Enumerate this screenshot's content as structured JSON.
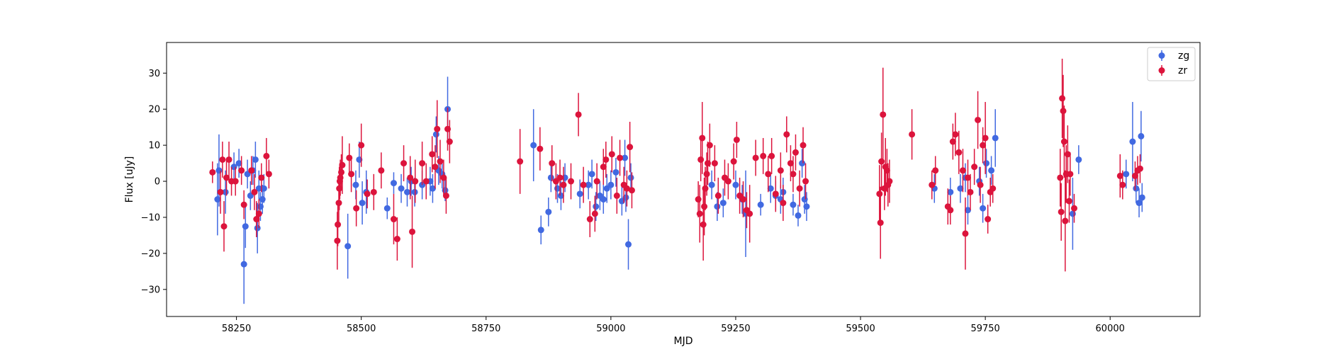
{
  "chart_data": {
    "type": "scatter",
    "title": "",
    "xlabel": "MJD",
    "ylabel": "Flux [uJy]",
    "xlim": [
      58110,
      60180
    ],
    "ylim": [
      -37.5,
      38.5
    ],
    "xticks": [
      58250,
      58500,
      58750,
      59000,
      59250,
      59500,
      59750,
      60000
    ],
    "yticks": [
      -30,
      -20,
      -10,
      0,
      10,
      20,
      30
    ],
    "grid": false,
    "legend_position": "top-right",
    "error_bars": true,
    "series": [
      {
        "name": "zg",
        "color": "#4169e1",
        "points": [
          [
            58212,
            -5,
            10
          ],
          [
            58215,
            3,
            10
          ],
          [
            58228,
            -3,
            6
          ],
          [
            58245,
            4,
            4
          ],
          [
            58255,
            5,
            4
          ],
          [
            58265,
            -23,
            11
          ],
          [
            58268,
            -12.5,
            6
          ],
          [
            58272,
            2,
            4
          ],
          [
            58278,
            -4,
            4
          ],
          [
            58283,
            3,
            4
          ],
          [
            58288,
            6,
            5
          ],
          [
            58292,
            -13,
            7
          ],
          [
            58295,
            -2,
            5
          ],
          [
            58298,
            -7,
            4
          ],
          [
            58302,
            -5,
            4
          ],
          [
            58305,
            -2,
            4
          ],
          [
            58473,
            -18,
            9
          ],
          [
            58489,
            -1,
            4
          ],
          [
            58496,
            6,
            5
          ],
          [
            58502,
            -6,
            6
          ],
          [
            58510,
            -3,
            6
          ],
          [
            58552,
            -7.5,
            3
          ],
          [
            58565,
            -0.5,
            3
          ],
          [
            58580,
            -2,
            4
          ],
          [
            58592,
            -3,
            4
          ],
          [
            58600,
            0,
            4
          ],
          [
            58607,
            -3,
            4
          ],
          [
            58622,
            -1,
            4
          ],
          [
            58638,
            0,
            4
          ],
          [
            58643,
            -2,
            4
          ],
          [
            58650,
            13,
            5
          ],
          [
            58655,
            3,
            4
          ],
          [
            58662,
            2,
            4
          ],
          [
            58668,
            -2.5,
            3
          ],
          [
            58673,
            20,
            9
          ],
          [
            58845,
            10,
            10
          ],
          [
            58860,
            -13.5,
            4
          ],
          [
            58875,
            -8.5,
            4
          ],
          [
            58880,
            1,
            4
          ],
          [
            58893,
            -2,
            4
          ],
          [
            58900,
            -4,
            4
          ],
          [
            58908,
            1,
            4
          ],
          [
            58938,
            -3.5,
            4
          ],
          [
            58955,
            -1,
            4
          ],
          [
            58962,
            2,
            4
          ],
          [
            58970,
            -7,
            4
          ],
          [
            58978,
            -4,
            4
          ],
          [
            58985,
            -5,
            4
          ],
          [
            58992,
            -2,
            4
          ],
          [
            59000,
            -1,
            4
          ],
          [
            59010,
            2.5,
            4
          ],
          [
            59022,
            -5.5,
            4
          ],
          [
            59028,
            6.5,
            5
          ],
          [
            59030,
            -4.5,
            4
          ],
          [
            59035,
            -17.5,
            7
          ],
          [
            59040,
            1,
            4
          ],
          [
            59202,
            -1,
            4
          ],
          [
            59213,
            -7,
            4
          ],
          [
            59225,
            -6,
            4
          ],
          [
            59250,
            -1,
            4
          ],
          [
            59263,
            -5,
            4
          ],
          [
            59270,
            -9,
            12
          ],
          [
            59300,
            -6.5,
            3
          ],
          [
            59320,
            -2,
            4
          ],
          [
            59330,
            -4,
            4
          ],
          [
            59340,
            -5,
            4
          ],
          [
            59345,
            -3,
            4
          ],
          [
            59365,
            -6.5,
            3
          ],
          [
            59375,
            -9.5,
            3
          ],
          [
            59383,
            5,
            4
          ],
          [
            59388,
            -5,
            4
          ],
          [
            59392,
            -7,
            4
          ],
          [
            59648,
            -2,
            4
          ],
          [
            59680,
            -3,
            4
          ],
          [
            59700,
            -2,
            4
          ],
          [
            59710,
            1,
            4
          ],
          [
            59715,
            -8,
            4
          ],
          [
            59738,
            0,
            4
          ],
          [
            59745,
            -7.5,
            4
          ],
          [
            59752,
            5,
            4
          ],
          [
            59762,
            3,
            4
          ],
          [
            59770,
            12,
            8
          ],
          [
            59925,
            -9,
            10
          ],
          [
            59937,
            6,
            4
          ],
          [
            60032,
            2,
            4
          ],
          [
            60045,
            11,
            11
          ],
          [
            60052,
            -2,
            4
          ],
          [
            60058,
            -6,
            4
          ],
          [
            60062,
            12.5,
            7
          ],
          [
            60064,
            -4.5,
            4
          ]
        ]
      },
      {
        "name": "zr",
        "color": "#dc143c",
        "points": [
          [
            58202,
            2.5,
            3
          ],
          [
            58218,
            -3,
            6
          ],
          [
            58222,
            6,
            5
          ],
          [
            58225,
            -12.5,
            7
          ],
          [
            58230,
            1,
            5
          ],
          [
            58235,
            6,
            5
          ],
          [
            58240,
            0,
            4
          ],
          [
            58248,
            0,
            4
          ],
          [
            58260,
            3,
            4
          ],
          [
            58265,
            -6.5,
            4
          ],
          [
            58280,
            3,
            4
          ],
          [
            58286,
            -3,
            5
          ],
          [
            58290,
            -10.5,
            5
          ],
          [
            58295,
            -9,
            4
          ],
          [
            58300,
            1,
            4
          ],
          [
            58310,
            7,
            5
          ],
          [
            58315,
            2,
            4
          ],
          [
            58452,
            -16.5,
            8
          ],
          [
            58453,
            -12,
            6
          ],
          [
            58455,
            -6,
            6
          ],
          [
            58456,
            -2,
            6
          ],
          [
            58457,
            0,
            5
          ],
          [
            58458,
            1,
            5
          ],
          [
            58460,
            2.5,
            5
          ],
          [
            58462,
            4.5,
            8
          ],
          [
            58476,
            6.5,
            4
          ],
          [
            58480,
            2,
            5
          ],
          [
            58490,
            -7.5,
            5
          ],
          [
            58500,
            10,
            6
          ],
          [
            58512,
            -3.5,
            4
          ],
          [
            58525,
            -3,
            5
          ],
          [
            58540,
            3,
            5
          ],
          [
            58565,
            -10.5,
            7
          ],
          [
            58572,
            -16,
            6
          ],
          [
            58585,
            5,
            5
          ],
          [
            58598,
            1,
            6
          ],
          [
            58602,
            -14,
            10
          ],
          [
            58608,
            0,
            6
          ],
          [
            58622,
            5,
            6
          ],
          [
            58630,
            0,
            5
          ],
          [
            58642,
            7.5,
            5
          ],
          [
            58648,
            4,
            6
          ],
          [
            58652,
            14.5,
            8
          ],
          [
            58658,
            5.5,
            6
          ],
          [
            58665,
            1,
            5
          ],
          [
            58670,
            -4,
            5
          ],
          [
            58673,
            14.5,
            6
          ],
          [
            58677,
            11,
            6
          ],
          [
            58818,
            5.5,
            9
          ],
          [
            58858,
            9,
            6
          ],
          [
            58882,
            5,
            5
          ],
          [
            58890,
            0,
            5
          ],
          [
            58898,
            1,
            5
          ],
          [
            58905,
            -1,
            5
          ],
          [
            58920,
            0,
            5
          ],
          [
            58935,
            18.5,
            6
          ],
          [
            58945,
            -1,
            5
          ],
          [
            58958,
            -10.5,
            5
          ],
          [
            58968,
            -9,
            5
          ],
          [
            58972,
            0,
            5
          ],
          [
            58985,
            4,
            5
          ],
          [
            58990,
            6,
            5
          ],
          [
            59002,
            7.5,
            5
          ],
          [
            59012,
            -4,
            5
          ],
          [
            59018,
            6.5,
            5
          ],
          [
            59026,
            -1,
            5
          ],
          [
            59032,
            -2,
            5
          ],
          [
            59038,
            9.5,
            7
          ],
          [
            59042,
            -2.5,
            5
          ],
          [
            59175,
            -5,
            5
          ],
          [
            59178,
            -9,
            8
          ],
          [
            59180,
            6,
            6
          ],
          [
            59183,
            12,
            10
          ],
          [
            59185,
            -12,
            10
          ],
          [
            59187,
            -7,
            8
          ],
          [
            59189,
            -2,
            6
          ],
          [
            59192,
            2,
            6
          ],
          [
            59194,
            5,
            6
          ],
          [
            59198,
            10,
            6
          ],
          [
            59208,
            5,
            5
          ],
          [
            59215,
            -4,
            5
          ],
          [
            59228,
            1,
            5
          ],
          [
            59235,
            0,
            5
          ],
          [
            59246,
            5.5,
            5
          ],
          [
            59252,
            11.5,
            5
          ],
          [
            59258,
            -4,
            5
          ],
          [
            59265,
            -5,
            5
          ],
          [
            59272,
            -8,
            5
          ],
          [
            59278,
            -9,
            8
          ],
          [
            59290,
            6.5,
            5
          ],
          [
            59305,
            7,
            5
          ],
          [
            59315,
            2,
            5
          ],
          [
            59322,
            7,
            5
          ],
          [
            59330,
            -3.5,
            5
          ],
          [
            59340,
            3,
            5
          ],
          [
            59345,
            -6,
            5
          ],
          [
            59352,
            13,
            5
          ],
          [
            59360,
            5,
            5
          ],
          [
            59365,
            2,
            5
          ],
          [
            59370,
            8,
            5
          ],
          [
            59378,
            -2,
            5
          ],
          [
            59385,
            10,
            5
          ],
          [
            59390,
            0,
            5
          ],
          [
            59538,
            -3.5,
            8
          ],
          [
            59540,
            -11.5,
            10
          ],
          [
            59542,
            5.5,
            8
          ],
          [
            59545,
            18.5,
            13
          ],
          [
            59548,
            -2,
            6
          ],
          [
            59550,
            4,
            8
          ],
          [
            59553,
            3,
            6
          ],
          [
            59555,
            -1,
            6
          ],
          [
            59558,
            0,
            6
          ],
          [
            59603,
            13,
            7
          ],
          [
            59643,
            -1,
            4
          ],
          [
            59650,
            3,
            4
          ],
          [
            59675,
            -7,
            5
          ],
          [
            59680,
            -8,
            4
          ],
          [
            59685,
            11,
            5
          ],
          [
            59690,
            13,
            6
          ],
          [
            59697,
            8,
            6
          ],
          [
            59705,
            3,
            6
          ],
          [
            59710,
            -14.5,
            10
          ],
          [
            59715,
            1,
            5
          ],
          [
            59720,
            -3,
            5
          ],
          [
            59728,
            4,
            5
          ],
          [
            59735,
            17,
            8
          ],
          [
            59740,
            -1,
            5
          ],
          [
            59745,
            10,
            5
          ],
          [
            59750,
            12,
            10
          ],
          [
            59755,
            -10.5,
            4
          ],
          [
            59760,
            -3,
            4
          ],
          [
            59765,
            -2,
            4
          ],
          [
            59900,
            1,
            8
          ],
          [
            59902,
            -8.5,
            8
          ],
          [
            59904,
            23,
            11
          ],
          [
            59906,
            19.5,
            10
          ],
          [
            59908,
            11,
            10
          ],
          [
            59910,
            -11,
            14
          ],
          [
            59912,
            2,
            8
          ],
          [
            59915,
            7.5,
            8
          ],
          [
            59918,
            -5.5,
            6
          ],
          [
            59920,
            2,
            6
          ],
          [
            59928,
            -7.5,
            4
          ],
          [
            60020,
            1.5,
            6
          ],
          [
            60025,
            -1,
            4
          ],
          [
            60050,
            1.5,
            4
          ],
          [
            60055,
            3,
            4
          ],
          [
            60060,
            3.5,
            4
          ]
        ]
      }
    ]
  }
}
